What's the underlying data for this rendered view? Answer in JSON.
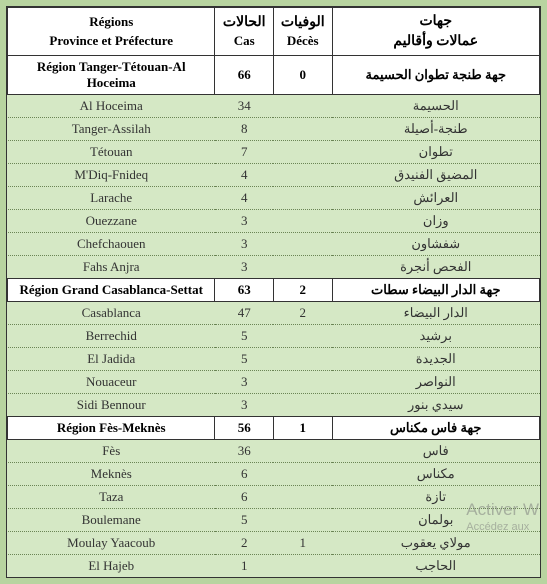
{
  "columns": {
    "region_fr_line1": "Régions",
    "region_fr_line2": "Province et Préfecture",
    "cases_ar": "الحالات",
    "cases_fr": "Cas",
    "deaths_ar": "الوفيات",
    "deaths_fr": "Décès",
    "region_ar_line1": "جهات",
    "region_ar_line2": "عمالات وأقاليم"
  },
  "sections": [
    {
      "region_fr": "Région Tanger-Tétouan-Al Hoceima",
      "cases": "66",
      "deaths": "0",
      "region_ar": "جهة طنجة تطوان الحسيمة",
      "provinces": [
        {
          "fr": "Al Hoceima",
          "cases": "34",
          "deaths": "",
          "ar": "الحسيمة"
        },
        {
          "fr": "Tanger-Assilah",
          "cases": "8",
          "deaths": "",
          "ar": "طنجة-أصيلة"
        },
        {
          "fr": "Tétouan",
          "cases": "7",
          "deaths": "",
          "ar": "تطوان"
        },
        {
          "fr": "M'Diq-Fnideq",
          "cases": "4",
          "deaths": "",
          "ar": "المضيق الفنيدق"
        },
        {
          "fr": "Larache",
          "cases": "4",
          "deaths": "",
          "ar": "العرائش"
        },
        {
          "fr": "Ouezzane",
          "cases": "3",
          "deaths": "",
          "ar": "وزان"
        },
        {
          "fr": "Chefchaouen",
          "cases": "3",
          "deaths": "",
          "ar": "شفشاون"
        },
        {
          "fr": "Fahs Anjra",
          "cases": "3",
          "deaths": "",
          "ar": "الفحص أنجرة"
        }
      ]
    },
    {
      "region_fr": "Région Grand Casablanca-Settat",
      "cases": "63",
      "deaths": "2",
      "region_ar": "جهة الدار البيضاء سطات",
      "provinces": [
        {
          "fr": "Casablanca",
          "cases": "47",
          "deaths": "2",
          "ar": "الدار البيضاء"
        },
        {
          "fr": "Berrechid",
          "cases": "5",
          "deaths": "",
          "ar": "برشيد"
        },
        {
          "fr": "El Jadida",
          "cases": "5",
          "deaths": "",
          "ar": "الجديدة"
        },
        {
          "fr": "Nouaceur",
          "cases": "3",
          "deaths": "",
          "ar": "النواصر"
        },
        {
          "fr": "Sidi Bennour",
          "cases": "3",
          "deaths": "",
          "ar": "سيدي بنور"
        }
      ]
    },
    {
      "region_fr": "Région Fès-Meknès",
      "cases": "56",
      "deaths": "1",
      "region_ar": "جهة فاس مكناس",
      "provinces": [
        {
          "fr": "Fès",
          "cases": "36",
          "deaths": "",
          "ar": "فاس"
        },
        {
          "fr": "Meknès",
          "cases": "6",
          "deaths": "",
          "ar": "مكناس"
        },
        {
          "fr": "Taza",
          "cases": "6",
          "deaths": "",
          "ar": "تازة"
        },
        {
          "fr": "Boulemane",
          "cases": "5",
          "deaths": "",
          "ar": "بولمان"
        },
        {
          "fr": "Moulay Yaacoub",
          "cases": "2",
          "deaths": "1",
          "ar": "مولاي يعقوب"
        },
        {
          "fr": "El  Hajeb",
          "cases": "1",
          "deaths": "",
          "ar": "الحاجب"
        }
      ]
    }
  ],
  "colors": {
    "page_bg": "#b8d4a0",
    "table_bg": "#d5e8c5",
    "header_bg": "#ffffff",
    "border": "#333333",
    "row_divider": "#6b8555"
  },
  "watermark": {
    "line1": "Activer W",
    "line2": "Accédez aux"
  }
}
